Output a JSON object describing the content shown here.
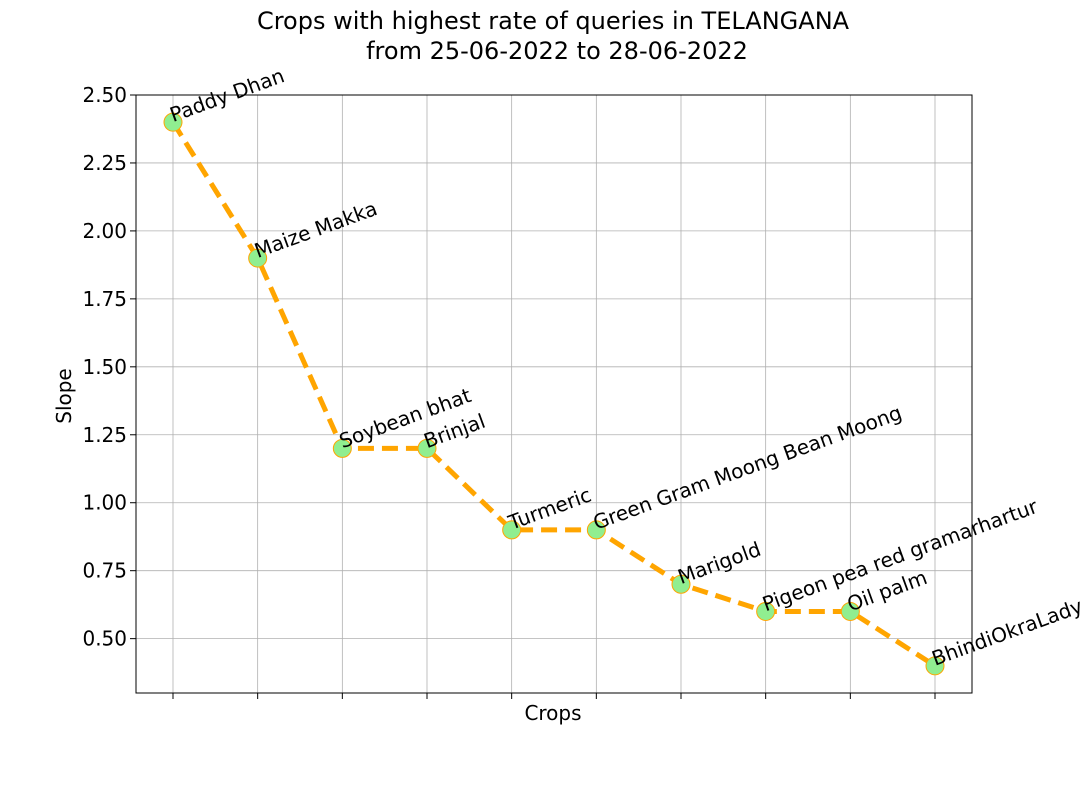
{
  "chart_data": {
    "type": "line",
    "title": "Crops with highest rate of queries in TELANGANA",
    "subtitle": "from 25-06-2022 to 28-06-2022",
    "xlabel": "Crops",
    "ylabel": "Slope",
    "categories": [
      "Paddy Dhan",
      "Maize Makka",
      "Soybean bhat",
      "Brinjal",
      "Turmeric",
      "Green Gram Moong Bean Moong",
      "Marigold",
      "Pigeon pea red gramarhartur",
      "Oil palm",
      "BhindiOkraLadysfinger"
    ],
    "values": [
      2.4,
      1.9,
      1.2,
      1.2,
      0.9,
      0.9,
      0.7,
      0.6,
      0.6,
      0.4
    ],
    "ylim": [
      0.3,
      2.5
    ],
    "yticks": [
      "0.50",
      "0.75",
      "1.00",
      "1.25",
      "1.50",
      "1.75",
      "2.00",
      "2.25",
      "2.50"
    ],
    "grid": true,
    "line_color": "#FFA500",
    "line_style": "dashed",
    "marker_color": "#90EE90",
    "marker_edge_color": "#FFA500"
  }
}
